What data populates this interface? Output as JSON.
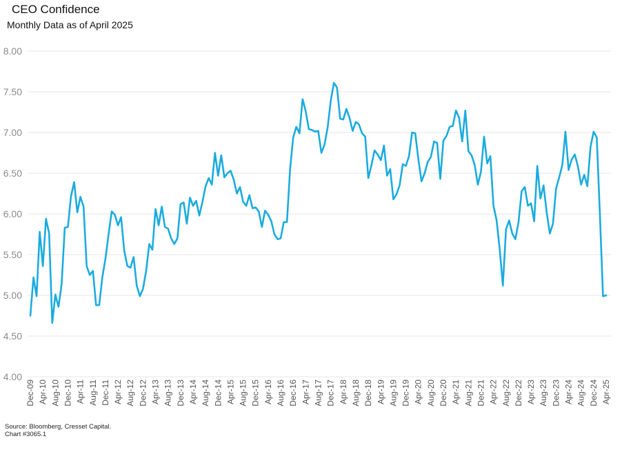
{
  "header": {
    "title": "CEO Confidence",
    "subtitle": "Monthly Data as of April 2025"
  },
  "footer": {
    "source": "Source: Bloomberg, Cresset Capital.",
    "chart_id": "Chart #3065.1"
  },
  "colors": {
    "line": "#1aabdf",
    "grid": "#e4e4e4",
    "tick_text": "#8a8a8a"
  },
  "chart_data": {
    "type": "line",
    "title": "CEO Confidence",
    "subtitle": "Monthly Data as of April 2025",
    "xlabel": "",
    "ylabel": "",
    "ylim": [
      4.0,
      8.0
    ],
    "yticks": [
      "4.00",
      "4.50",
      "5.00",
      "5.50",
      "6.00",
      "6.50",
      "7.00",
      "7.50",
      "8.00"
    ],
    "x_range": [
      "2009-12",
      "2025-04"
    ],
    "x_tick_labels": [
      "Dec-09",
      "Apr-10",
      "Aug-10",
      "Dec-10",
      "Apr-11",
      "Aug-11",
      "Dec-11",
      "Apr-12",
      "Aug-12",
      "Dec-12",
      "Apr-13",
      "Aug-13",
      "Dec-13",
      "Apr-14",
      "Aug-14",
      "Dec-14",
      "Apr-15",
      "Aug-15",
      "Dec-15",
      "Apr-16",
      "Aug-16",
      "Dec-16",
      "Apr-17",
      "Aug-17",
      "Dec-17",
      "Apr-18",
      "Aug-18",
      "Dec-18",
      "Apr-19",
      "Aug-19",
      "Dec-19",
      "Apr-20",
      "Aug-20",
      "Dec-20",
      "Apr-21",
      "Aug-21",
      "Dec-21",
      "Apr-22",
      "Aug-22",
      "Dec-22",
      "Apr-23",
      "Aug-23",
      "Dec-23",
      "Apr-24",
      "Aug-24",
      "Dec-24",
      "Apr-25"
    ],
    "grid": "horizontal",
    "legend": "none",
    "series": [
      {
        "values": [
          4.75,
          5.22,
          4.99,
          5.78,
          5.36,
          5.94,
          5.76,
          4.66,
          5.01,
          4.86,
          5.14,
          5.83,
          5.84,
          6.22,
          6.39,
          6.02,
          6.21,
          6.09,
          5.36,
          5.25,
          5.3,
          4.88,
          4.88,
          5.22,
          5.45,
          5.75,
          6.03,
          5.99,
          5.86,
          5.96,
          5.55,
          5.36,
          5.34,
          5.47,
          5.12,
          4.99,
          5.08,
          5.3,
          5.63,
          5.56,
          6.06,
          5.86,
          6.09,
          5.84,
          5.82,
          5.7,
          5.63,
          5.7,
          6.12,
          6.14,
          5.88,
          6.2,
          6.1,
          6.16,
          5.98,
          6.15,
          6.34,
          6.44,
          6.36,
          6.75,
          6.47,
          6.72,
          6.45,
          6.5,
          6.53,
          6.42,
          6.25,
          6.33,
          6.15,
          6.1,
          6.23,
          6.07,
          6.08,
          6.03,
          5.84,
          6.04,
          5.99,
          5.91,
          5.75,
          5.69,
          5.7,
          5.9,
          5.9,
          6.55,
          6.94,
          7.07,
          6.99,
          7.41,
          7.26,
          7.04,
          7.03,
          7.01,
          7.02,
          6.75,
          6.85,
          7.06,
          7.39,
          7.61,
          7.55,
          7.17,
          7.16,
          7.29,
          7.18,
          7.02,
          7.13,
          7.1,
          6.99,
          6.95,
          6.44,
          6.6,
          6.78,
          6.73,
          6.66,
          6.84,
          6.47,
          6.55,
          6.18,
          6.24,
          6.35,
          6.61,
          6.59,
          6.71,
          7.0,
          6.99,
          6.67,
          6.4,
          6.5,
          6.64,
          6.7,
          6.89,
          6.87,
          6.43,
          6.9,
          6.96,
          7.07,
          7.08,
          7.27,
          7.18,
          6.89,
          7.27,
          6.77,
          6.72,
          6.6,
          6.36,
          6.52,
          6.95,
          6.62,
          6.71,
          6.1,
          5.92,
          5.56,
          5.12,
          5.81,
          5.92,
          5.76,
          5.69,
          5.9,
          6.28,
          6.33,
          6.1,
          6.13,
          5.91,
          6.59,
          6.19,
          6.35,
          6.02,
          5.76,
          5.88,
          6.31,
          6.45,
          6.6,
          7.01,
          6.54,
          6.67,
          6.73,
          6.58,
          6.36,
          6.48,
          6.34,
          6.82,
          7.01,
          6.94,
          6.0,
          4.99,
          5.0
        ]
      }
    ]
  }
}
